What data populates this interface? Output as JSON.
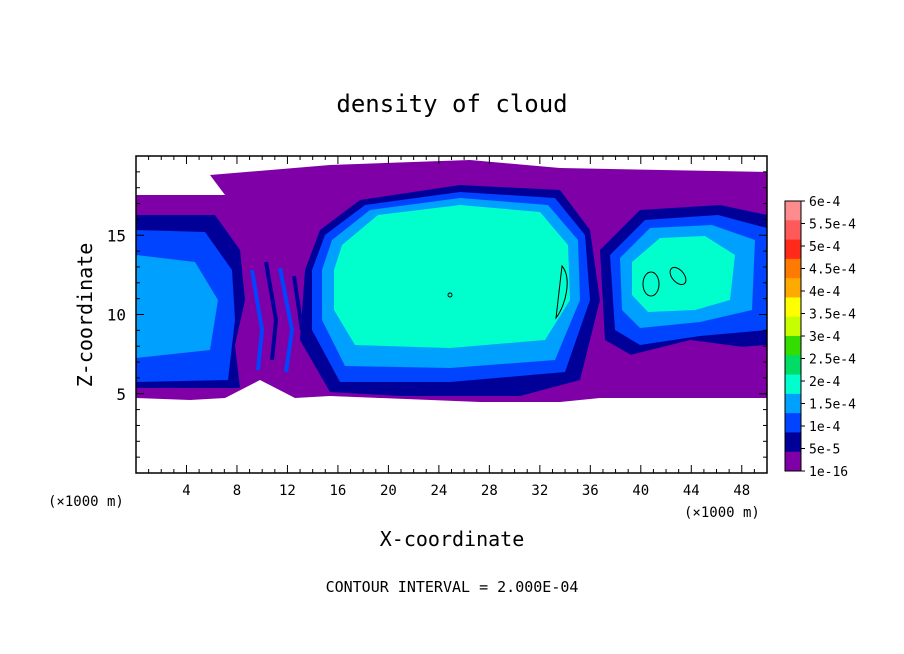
{
  "chart_data": {
    "type": "heatmap",
    "title": "density of cloud",
    "xlabel": "X-coordinate",
    "ylabel": "Z-coordinate",
    "x_unit_left": "(×1000 m)",
    "x_unit_right": "(×1000 m)",
    "xlim": [
      0,
      50
    ],
    "ylim": [
      0,
      20
    ],
    "x_ticks": [
      "4",
      "8",
      "12",
      "16",
      "20",
      "24",
      "28",
      "32",
      "36",
      "40",
      "44",
      "48"
    ],
    "y_ticks": [
      "5",
      "10",
      "15"
    ],
    "footer": "CONTOUR INTERVAL = 2.000E-04",
    "grid": false,
    "legend_position": "right",
    "colorbar": {
      "labels": [
        "6e-4",
        "5.5e-4",
        "5e-4",
        "4.5e-4",
        "4e-4",
        "3.5e-4",
        "3e-4",
        "2.5e-4",
        "2e-4",
        "1.5e-4",
        "1e-4",
        "5e-5",
        "1e-16"
      ],
      "colors": [
        "#ff8c8c",
        "#ff5a5a",
        "#ff2a1a",
        "#ff7a00",
        "#ffaa00",
        "#ffff00",
        "#c8ff00",
        "#33dd00",
        "#00dd66",
        "#00ffcc",
        "#00a0ff",
        "#0044ff",
        "#000099",
        "#8000a8"
      ]
    }
  }
}
